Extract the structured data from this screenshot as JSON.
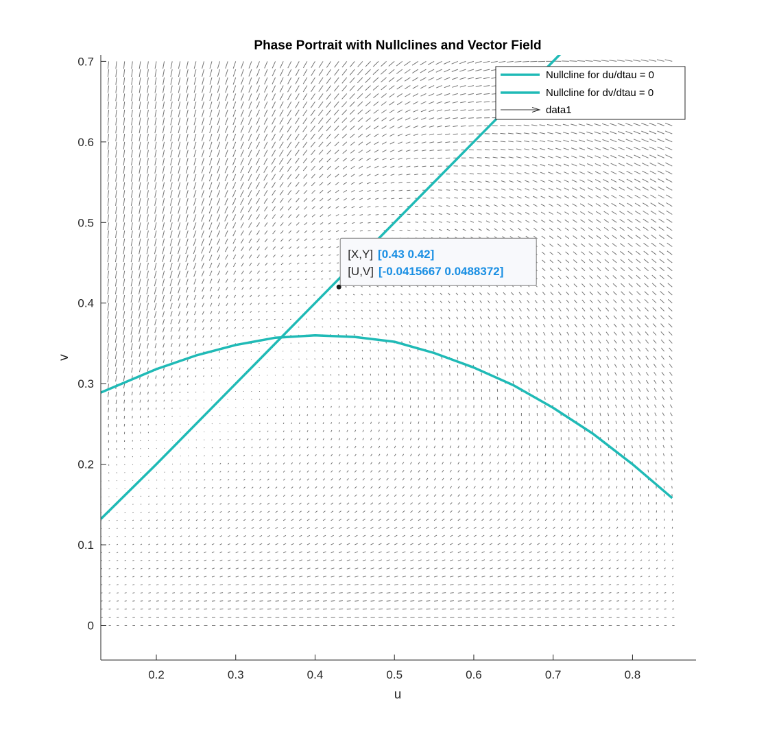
{
  "chart_data": {
    "type": "line",
    "title": "Phase Portrait with Nullclines and Vector Field",
    "xlabel": "u",
    "ylabel": "v",
    "xlim": [
      0.13,
      0.88
    ],
    "ylim": [
      -0.043,
      0.708
    ],
    "xticks": [
      "0.2",
      "0.3",
      "0.4",
      "0.5",
      "0.6",
      "0.7",
      "0.8"
    ],
    "yticks": [
      "0",
      "0.1",
      "0.2",
      "0.3",
      "0.4",
      "0.5",
      "0.6",
      "0.7"
    ],
    "grid": false,
    "legend_position": "top-right",
    "series": [
      {
        "name": "Nullcline for du/dtau = 0",
        "color": "#1fbab6",
        "x": [
          0.13,
          0.2,
          0.3,
          0.4,
          0.5,
          0.6,
          0.7,
          0.72
        ],
        "y": [
          0.132,
          0.2,
          0.3,
          0.4,
          0.5,
          0.6,
          0.7,
          0.72
        ]
      },
      {
        "name": "Nullcline for dv/dtau = 0",
        "color": "#1fbab6",
        "x": [
          0.13,
          0.2,
          0.25,
          0.3,
          0.35,
          0.4,
          0.45,
          0.5,
          0.55,
          0.6,
          0.65,
          0.7,
          0.75,
          0.8,
          0.85
        ],
        "y": [
          0.289,
          0.318,
          0.335,
          0.348,
          0.357,
          0.36,
          0.358,
          0.352,
          0.338,
          0.32,
          0.298,
          0.27,
          0.238,
          0.2,
          0.158
        ]
      },
      {
        "name": "data1",
        "type": "quiver",
        "color": "#000000",
        "u_range": [
          0.13,
          0.85
        ],
        "v_range": [
          0.0,
          0.708
        ],
        "step": 0.01
      }
    ],
    "datatip": {
      "x": 0.43,
      "y": 0.42,
      "xy_key": "[X,Y]",
      "xy_value": "[0.43 0.42]",
      "uv_key": "[U,V]",
      "uv_value": "[-0.0415667 0.0488372]"
    }
  }
}
